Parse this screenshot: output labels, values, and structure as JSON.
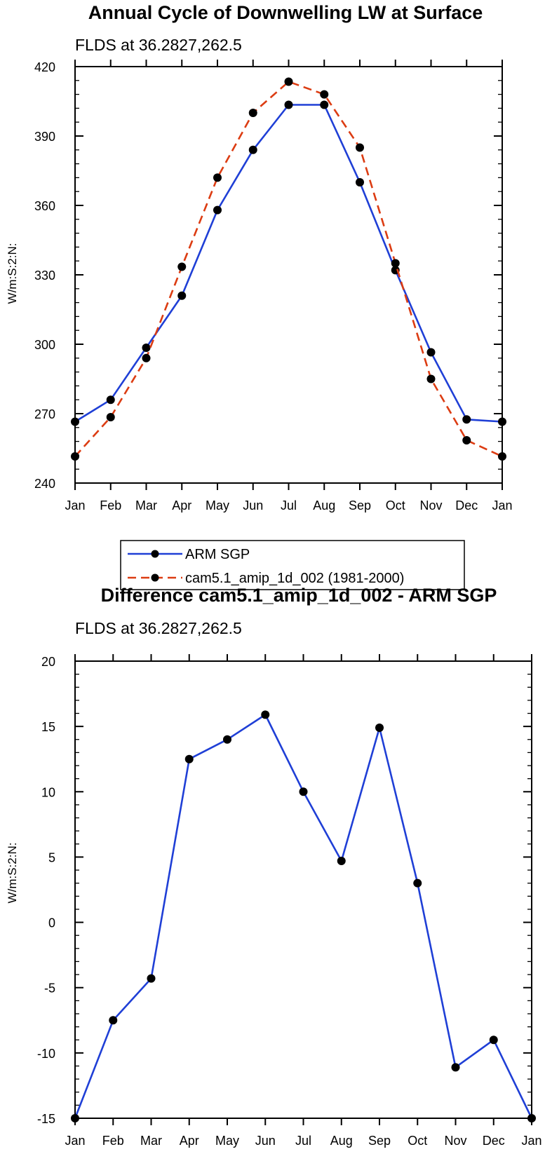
{
  "chart_data": [
    {
      "type": "line",
      "title": "Annual Cycle of Downwelling LW at Surface",
      "subtitle": "FLDS at 36.2827,262.5",
      "xlabel": "",
      "ylabel": "W/m:S:2:N:",
      "categories": [
        "Jan",
        "Feb",
        "Mar",
        "Apr",
        "May",
        "Jun",
        "Jul",
        "Aug",
        "Sep",
        "Oct",
        "Nov",
        "Dec",
        "Jan"
      ],
      "ylim": [
        240,
        420
      ],
      "yticks": [
        240,
        270,
        300,
        330,
        360,
        390,
        420
      ],
      "series": [
        {
          "name": "ARM SGP",
          "color": "#1f3fd6",
          "dash": "solid",
          "values": [
            266.5,
            276,
            298.5,
            321,
            358,
            384,
            403.5,
            403.5,
            370,
            332,
            296.5,
            267.5,
            266.5
          ]
        },
        {
          "name": "cam5.1_amip_1d_002 (1981-2000)",
          "color": "#dc3c12",
          "dash": "dashed",
          "values": [
            251.5,
            268.5,
            294,
            333.5,
            372,
            400,
            413.5,
            408,
            385,
            335,
            285,
            258.5,
            251.5
          ]
        }
      ],
      "legend": "below"
    },
    {
      "type": "line",
      "title": "Difference cam5.1_amip_1d_002 - ARM SGP",
      "subtitle": "FLDS at 36.2827,262.5",
      "xlabel": "",
      "ylabel": "W/m:S:2:N:",
      "categories": [
        "Jan",
        "Feb",
        "Mar",
        "Apr",
        "May",
        "Jun",
        "Jul",
        "Aug",
        "Sep",
        "Oct",
        "Nov",
        "Dec",
        "Jan"
      ],
      "ylim": [
        -15,
        20
      ],
      "yticks": [
        -15,
        -10,
        -5,
        0,
        5,
        10,
        15,
        20
      ],
      "series": [
        {
          "name": "Difference",
          "color": "#1f3fd6",
          "dash": "solid",
          "values": [
            -15,
            -7.5,
            -4.3,
            12.5,
            14,
            15.9,
            10,
            4.7,
            14.9,
            3,
            -11.1,
            -9,
            -15
          ]
        }
      ],
      "legend": "none"
    }
  ]
}
